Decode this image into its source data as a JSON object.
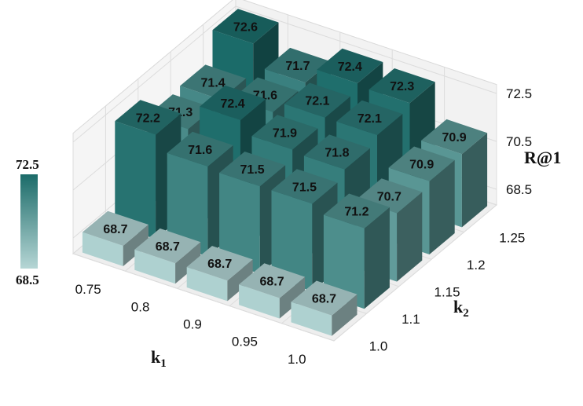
{
  "chart_data": {
    "type": "bar3d",
    "x": {
      "label": "k",
      "label_sub": "1",
      "ticks": [
        "0.75",
        "0.8",
        "0.9",
        "0.95",
        "1.0"
      ]
    },
    "y": {
      "label": "k",
      "label_sub": "2",
      "ticks": [
        "1.0",
        "1.1",
        "1.15",
        "1.2",
        "1.25"
      ]
    },
    "z": {
      "label": "R@1",
      "ticks": [
        "68.5",
        "70.5",
        "72.5"
      ],
      "range": [
        68.5,
        72.5
      ]
    },
    "colorbar": {
      "min_label": "68.5",
      "max_label": "72.5",
      "low_color": "#b6d6d5",
      "high_color": "#1b6b69"
    },
    "values": [
      [
        "68.7",
        "68.7",
        "68.7",
        "68.7",
        "68.7"
      ],
      [
        "72.2",
        "71.6",
        "71.5",
        "71.5",
        "71.2"
      ],
      [
        "71.3",
        "72.4",
        "71.9",
        "71.8",
        "70.7"
      ],
      [
        "71.4",
        "71.6",
        "72.1",
        "72.1",
        "70.9"
      ],
      [
        "72.6",
        "71.7",
        "72.4",
        "72.3",
        "70.9"
      ]
    ]
  }
}
